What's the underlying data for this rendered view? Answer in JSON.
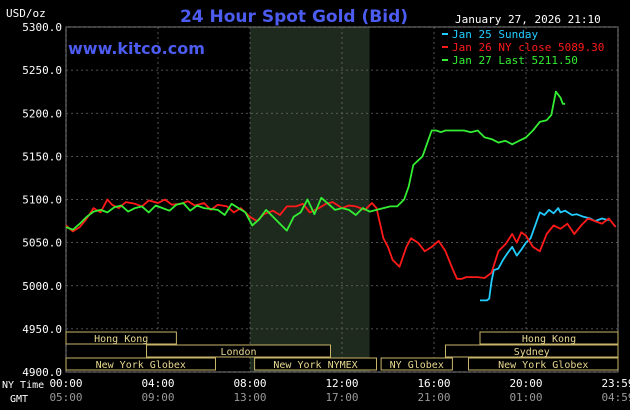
{
  "chart_data": {
    "type": "line",
    "title": "24 Hour Spot Gold (Bid)",
    "watermark": "www.kitco.com",
    "timestamp": "January 27, 2026 21:10",
    "ylabel": "USD/oz",
    "ylim": [
      4900,
      5300
    ],
    "yticks": [
      "5300.0",
      "5250.0",
      "5200.0",
      "5150.0",
      "5100.0",
      "5050.0",
      "5000.0",
      "4950.0",
      "4900.0"
    ],
    "xlim": [
      0,
      24
    ],
    "x_ticks_ny": [
      "00:00",
      "04:00",
      "08:00",
      "12:00",
      "16:00",
      "20:00",
      "23:59"
    ],
    "x_ticks_gmt": [
      "05:00",
      "09:00",
      "13:00",
      "17:00",
      "21:00",
      "01:00",
      "04:59"
    ],
    "x_axis_label_ny": "NY Time",
    "x_axis_label_gmt": "GMT",
    "grid": true,
    "legend": [
      {
        "label": "Jan 25 Sunday",
        "color": "#22ccff"
      },
      {
        "label": "Jan 26 NY close 5089.30",
        "color": "#ff1a1a"
      },
      {
        "label": "Jan 27 Last 5211.50",
        "color": "#33ee33"
      }
    ],
    "shaded_region_hours": [
      8.0,
      13.2
    ],
    "market_sessions": [
      {
        "label": "Hong Kong",
        "start": 0.0,
        "end": 4.8,
        "row": 0
      },
      {
        "label": "Hong Kong",
        "start": 18.0,
        "end": 24.0,
        "row": 0
      },
      {
        "label": "London",
        "start": 3.5,
        "end": 11.5,
        "row": 1
      },
      {
        "label": "Sydney",
        "start": 16.5,
        "end": 24.0,
        "row": 1
      },
      {
        "label": "New York Globex",
        "start": 0.0,
        "end": 6.5,
        "row": 2
      },
      {
        "label": "New York NYMEX",
        "start": 8.2,
        "end": 13.5,
        "row": 2
      },
      {
        "label": "NY Globex",
        "start": 13.7,
        "end": 16.8,
        "row": 2
      },
      {
        "label": "New York Globex",
        "start": 17.5,
        "end": 24.0,
        "row": 2
      }
    ],
    "series": [
      {
        "name": "Jan 25 Sunday",
        "color": "#22ccff",
        "x": [
          18.0,
          18.1,
          18.3,
          18.4,
          18.5,
          18.6,
          18.8,
          18.9,
          19.0,
          19.2,
          19.4,
          19.5,
          19.6,
          19.8,
          20.0,
          20.2,
          20.4,
          20.6,
          20.8,
          21.0,
          21.2,
          21.4,
          21.5,
          21.7,
          22.0,
          22.2,
          22.5,
          22.8,
          23.0,
          23.3,
          23.6
        ],
        "y": [
          4983,
          4983,
          4983,
          4985,
          5005,
          5018,
          5020,
          5025,
          5030,
          5038,
          5045,
          5040,
          5035,
          5042,
          5050,
          5055,
          5070,
          5085,
          5082,
          5088,
          5084,
          5090,
          5085,
          5087,
          5082,
          5083,
          5080,
          5078,
          5075,
          5078,
          5076
        ]
      },
      {
        "name": "Jan 26 NY close 5089.30",
        "color": "#ff1a1a",
        "x": [
          0.0,
          0.3,
          0.6,
          0.9,
          1.2,
          1.5,
          1.8,
          2.0,
          2.3,
          2.6,
          3.0,
          3.3,
          3.6,
          4.0,
          4.3,
          4.6,
          5.0,
          5.3,
          5.6,
          6.0,
          6.3,
          6.6,
          7.0,
          7.3,
          7.6,
          8.0,
          8.3,
          8.6,
          9.0,
          9.3,
          9.6,
          10.0,
          10.3,
          10.6,
          11.0,
          11.3,
          11.6,
          12.0,
          12.3,
          12.6,
          13.0,
          13.3,
          13.5,
          13.8,
          14.0,
          14.2,
          14.5,
          14.8,
          15.0,
          15.3,
          15.6,
          15.9,
          16.2,
          16.5,
          16.8,
          17.0,
          17.2,
          17.4,
          17.6,
          17.9,
          18.2,
          18.5,
          18.8,
          19.1,
          19.4,
          19.6,
          19.8,
          20.0,
          20.3,
          20.6,
          20.9,
          21.2,
          21.5,
          21.8,
          22.1,
          22.4,
          22.7,
          23.0,
          23.3,
          23.6,
          23.9
        ],
        "y": [
          5070,
          5063,
          5068,
          5078,
          5090,
          5085,
          5100,
          5094,
          5090,
          5097,
          5095,
          5092,
          5099,
          5096,
          5100,
          5094,
          5095,
          5098,
          5093,
          5096,
          5088,
          5094,
          5092,
          5085,
          5090,
          5080,
          5075,
          5083,
          5087,
          5082,
          5092,
          5092,
          5095,
          5085,
          5090,
          5095,
          5097,
          5090,
          5093,
          5092,
          5088,
          5096,
          5090,
          5055,
          5045,
          5030,
          5022,
          5045,
          5055,
          5050,
          5040,
          5045,
          5052,
          5040,
          5020,
          5008,
          5008,
          5010,
          5010,
          5010,
          5009,
          5015,
          5040,
          5048,
          5060,
          5050,
          5062,
          5058,
          5045,
          5040,
          5060,
          5070,
          5066,
          5072,
          5060,
          5070,
          5078,
          5075,
          5072,
          5078,
          5068
        ]
      },
      {
        "name": "Jan 27 Last 5211.50",
        "color": "#33ee33",
        "x": [
          0.0,
          0.3,
          0.6,
          0.9,
          1.2,
          1.5,
          1.8,
          2.1,
          2.4,
          2.7,
          3.0,
          3.3,
          3.6,
          3.9,
          4.2,
          4.5,
          4.8,
          5.1,
          5.4,
          5.7,
          6.0,
          6.3,
          6.6,
          6.9,
          7.2,
          7.5,
          7.8,
          8.1,
          8.4,
          8.7,
          9.0,
          9.3,
          9.6,
          9.9,
          10.2,
          10.5,
          10.8,
          11.1,
          11.4,
          11.7,
          12.0,
          12.3,
          12.6,
          12.9,
          13.2,
          13.5,
          13.8,
          14.1,
          14.4,
          14.7,
          14.9,
          15.1,
          15.3,
          15.5,
          15.7,
          15.9,
          16.1,
          16.3,
          16.5,
          16.8,
          17.0,
          17.3,
          17.6,
          17.9,
          18.2,
          18.5,
          18.8,
          19.1,
          19.4,
          19.7,
          20.0,
          20.3,
          20.6,
          20.9,
          21.1,
          21.3,
          21.5,
          21.6,
          21.7
        ],
        "y": [
          5068,
          5065,
          5072,
          5080,
          5086,
          5088,
          5085,
          5091,
          5093,
          5086,
          5090,
          5092,
          5085,
          5093,
          5090,
          5087,
          5094,
          5096,
          5087,
          5093,
          5090,
          5089,
          5088,
          5082,
          5095,
          5090,
          5085,
          5070,
          5077,
          5088,
          5080,
          5072,
          5064,
          5080,
          5085,
          5100,
          5083,
          5102,
          5095,
          5088,
          5090,
          5088,
          5082,
          5090,
          5086,
          5088,
          5090,
          5092,
          5092,
          5100,
          5115,
          5140,
          5145,
          5150,
          5165,
          5180,
          5180,
          5178,
          5180,
          5180,
          5180,
          5180,
          5178,
          5180,
          5172,
          5170,
          5166,
          5168,
          5164,
          5168,
          5172,
          5180,
          5190,
          5192,
          5198,
          5225,
          5218,
          5211,
          5211
        ]
      }
    ]
  }
}
